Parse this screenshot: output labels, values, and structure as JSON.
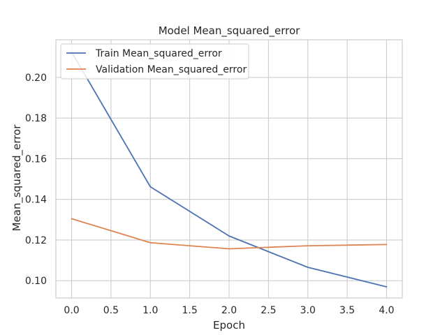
{
  "chart_data": {
    "type": "line",
    "title": "Model Mean_squared_error",
    "xlabel": "Epoch",
    "ylabel": "Mean_squared_error",
    "x": [
      0,
      1,
      2,
      3,
      4
    ],
    "series": [
      {
        "name": "Train Mean_squared_error",
        "values": [
          0.2125,
          0.1462,
          0.122,
          0.1066,
          0.097
        ],
        "color": "#4c72b0"
      },
      {
        "name": "Validation Mean_squared_error",
        "values": [
          0.1305,
          0.1187,
          0.1157,
          0.1172,
          0.1178
        ],
        "color": "#dd8452"
      }
    ],
    "xlim": [
      -0.2,
      4.2
    ],
    "ylim": [
      0.0915,
      0.2185
    ],
    "xticks": [
      0.0,
      0.5,
      1.0,
      1.5,
      2.0,
      2.5,
      3.0,
      3.5,
      4.0
    ],
    "xtick_labels": [
      "0.0",
      "0.5",
      "1.0",
      "1.5",
      "2.0",
      "2.5",
      "3.0",
      "3.5",
      "4.0"
    ],
    "yticks": [
      0.1,
      0.12,
      0.14,
      0.16,
      0.18,
      0.2
    ],
    "ytick_labels": [
      "0.10",
      "0.12",
      "0.14",
      "0.16",
      "0.18",
      "0.20"
    ],
    "grid": true,
    "legend_position": "upper-left",
    "grid_color": "#cccccc",
    "frame_color": "#cccccc"
  }
}
